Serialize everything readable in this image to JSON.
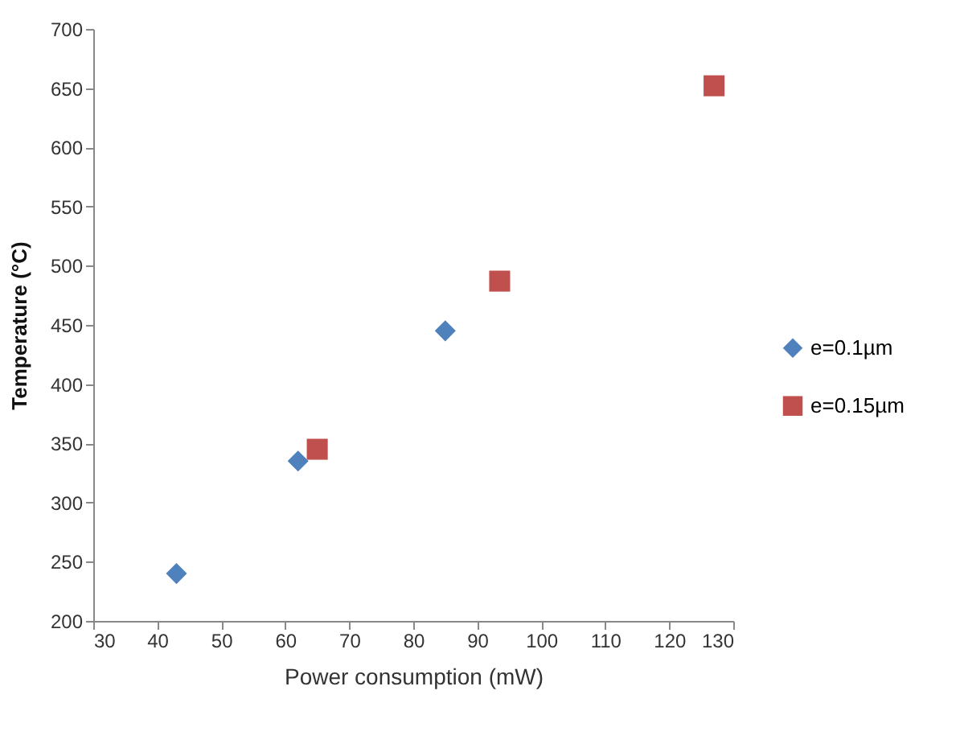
{
  "chart_data": {
    "type": "scatter",
    "xlabel": "Power consumption  (mW)",
    "ylabel": "Temperature (°C)",
    "xlim": [
      30,
      130
    ],
    "xticks": [
      30,
      40,
      50,
      60,
      70,
      80,
      90,
      100,
      110,
      120,
      130
    ],
    "ylim": [
      200,
      700
    ],
    "yticks": [
      200,
      250,
      300,
      350,
      400,
      450,
      500,
      550,
      600,
      650,
      700
    ],
    "grid": false,
    "legend": "right",
    "series": [
      {
        "name": "e=0.1µm",
        "color": "#4f81bd",
        "marker": "diamond",
        "x": [
          43,
          62,
          85
        ],
        "values": [
          240,
          335,
          445
        ]
      },
      {
        "name": "e=0.15µm",
        "color": "#c0504d",
        "marker": "square",
        "x": [
          65,
          93.5,
          127
        ],
        "values": [
          345,
          487,
          652
        ]
      }
    ]
  }
}
